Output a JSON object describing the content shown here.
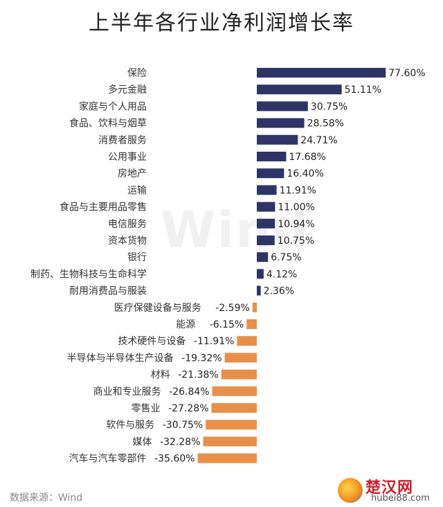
{
  "title": "上半年各行业净利润增长率",
  "source": "数据来源：Wind",
  "watermark": "Wind",
  "logo": {
    "name": "楚汉网",
    "url": "hubei88.com"
  },
  "colors": {
    "positive": "#2e3566",
    "negative": "#e8904a"
  },
  "chart_data": {
    "type": "bar",
    "orientation": "horizontal",
    "unit": "%",
    "categories": [
      "保险",
      "多元金融",
      "家庭与个人用品",
      "食品、饮料与烟草",
      "消费者服务",
      "公用事业",
      "房地产",
      "运输",
      "食品与主要用品零售",
      "电信服务",
      "资本货物",
      "银行",
      "制药、生物科技与生命科学",
      "耐用消费品与服装",
      "医疗保健设备与服务",
      "能源",
      "技术硬件与设备",
      "半导体与半导体生产设备",
      "材料",
      "商业和专业服务",
      "零售业",
      "软件与服务",
      "媒体",
      "汽车与汽车零部件"
    ],
    "values": [
      77.6,
      51.11,
      30.75,
      28.58,
      24.71,
      17.68,
      16.4,
      11.91,
      11.0,
      10.94,
      10.75,
      6.75,
      4.12,
      2.36,
      -2.59,
      -6.15,
      -11.91,
      -19.32,
      -21.38,
      -26.84,
      -27.28,
      -30.75,
      -32.28,
      -35.6
    ],
    "labels": [
      "77.60%",
      "51.11%",
      "30.75%",
      "28.58%",
      "24.71%",
      "17.68%",
      "16.40%",
      "11.91%",
      "11.00%",
      "10.94%",
      "10.75%",
      "6.75%",
      "4.12%",
      "2.36%",
      "-2.59%",
      "-6.15%",
      "-11.91%",
      "-19.32%",
      "-21.38%",
      "-26.84%",
      "-27.28%",
      "-30.75%",
      "-32.28%",
      "-35.60%"
    ]
  }
}
